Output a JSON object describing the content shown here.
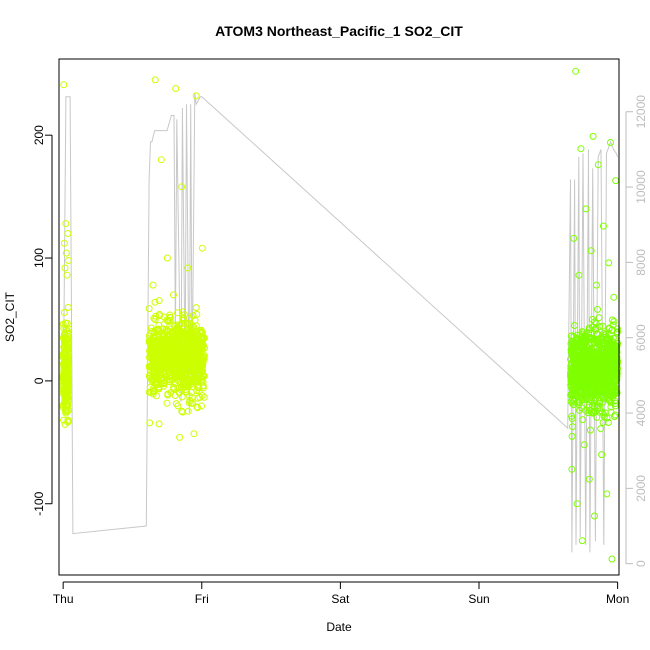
{
  "chart_data": {
    "type": "scatter",
    "title": "ATOM3 Northeast_Pacific_1 SO2_CIT",
    "xlabel": "Date",
    "ylabel": "SO2_CIT",
    "x_ticks": [
      "Thu",
      "Fri",
      "Sat",
      "Sun",
      "Mon"
    ],
    "y_ticks": [
      "-100",
      "0",
      "100",
      "200"
    ],
    "y_right_ticks": [
      "0",
      "2000",
      "4000",
      "6000",
      "8000",
      "10000",
      "12000"
    ],
    "xlim": [
      -0.03,
      4.01
    ],
    "ylim": [
      -158,
      262
    ],
    "y_right_lim": [
      -300,
      13400
    ],
    "grid": false,
    "colors": {
      "early": "#ccff00",
      "late": "#7fff00",
      "altitude_line": "#c8c8c8",
      "axis": "#000000",
      "right_axis": "#bdbdbd"
    },
    "series": [
      {
        "x_range": [
          0.0,
          0.04
        ],
        "y_mean": 8,
        "y_spread": 18,
        "outliers": [
          241,
          128,
          120,
          112,
          104,
          98,
          92,
          86,
          -32,
          -25
        ],
        "count": 230,
        "color": "#ccff00"
      },
      {
        "x_range": [
          0.62,
          1.02
        ],
        "y_mean": 18,
        "y_spread": 15,
        "outliers": [
          245,
          238,
          232,
          180,
          158,
          108,
          100,
          92,
          78,
          70,
          -43,
          -35,
          -46
        ],
        "count": 900,
        "color": "#ccff00"
      },
      {
        "x_range": [
          3.66,
          4.0
        ],
        "y_mean": 8,
        "y_spread": 16,
        "outliers": [
          252,
          199,
          194,
          189,
          176,
          163,
          140,
          126,
          116,
          106,
          96,
          86,
          78,
          68,
          -52,
          -60,
          -72,
          -80,
          -92,
          -100,
          -110,
          -145,
          -130
        ],
        "count": 1000,
        "color": "#7fff00"
      }
    ],
    "altitude_series": {
      "x": [
        0.0,
        0.02,
        0.03,
        0.05,
        0.07,
        0.6,
        0.62,
        0.63,
        0.64,
        0.66,
        0.7,
        0.74,
        0.75,
        0.78,
        0.8,
        0.81,
        0.82,
        0.85,
        0.86,
        0.88,
        0.89,
        0.91,
        0.92,
        0.93,
        0.95,
        0.96,
        0.99,
        1.0,
        3.64,
        3.66,
        3.67,
        3.69,
        3.7,
        3.72,
        3.73,
        3.75,
        3.77,
        3.79,
        3.8,
        3.82,
        3.84,
        3.86,
        3.88,
        3.9,
        3.92,
        3.95,
        3.97,
        3.99,
        4.0
      ],
      "y": [
        4000,
        12400,
        12400,
        12400,
        800,
        1000,
        10200,
        11200,
        11200,
        11500,
        11500,
        11500,
        11500,
        11900,
        11900,
        6000,
        11800,
        4300,
        12100,
        5000,
        12200,
        4000,
        12200,
        4800,
        12500,
        12200,
        12400,
        12400,
        3600,
        10200,
        300,
        10200,
        500,
        10800,
        700,
        10900,
        500,
        11000,
        300,
        10500,
        600,
        10800,
        11000,
        500,
        10900,
        11200,
        11000,
        10900,
        10800
      ]
    }
  }
}
